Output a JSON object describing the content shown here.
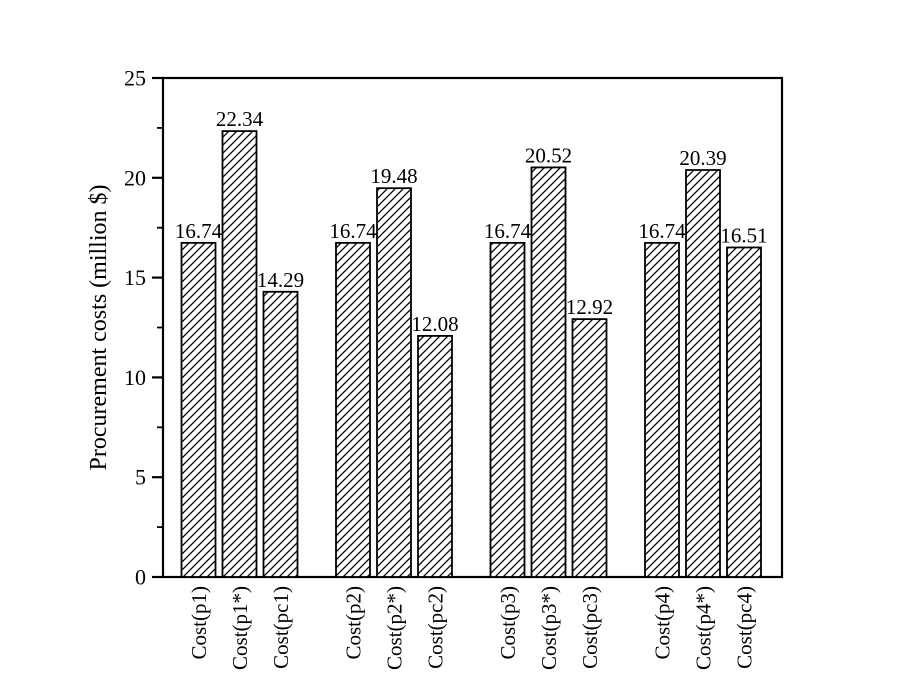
{
  "figure": {
    "title": ""
  },
  "chart_data": {
    "type": "bar",
    "title": "",
    "xlabel": "",
    "ylabel": "Procurement costs (million $)",
    "ylim": [
      0,
      25
    ],
    "yticks": [
      0,
      5,
      10,
      15,
      20,
      25
    ],
    "ytick_labels": [
      "0",
      "5",
      "10",
      "15",
      "20",
      "25"
    ],
    "minor_ytick_interval": 2.5,
    "grid": false,
    "legend": "none",
    "group_size": 3,
    "categories": [
      "Cost(p1)",
      "Cost(p1*)",
      "Cost(pc1)",
      "Cost(p2)",
      "Cost(p2*)",
      "Cost(pc2)",
      "Cost(p3)",
      "Cost(p3*)",
      "Cost(pc3)",
      "Cost(p4)",
      "Cost(p4*)",
      "Cost(pc4)"
    ],
    "values": [
      16.74,
      22.34,
      14.29,
      16.74,
      19.48,
      12.08,
      16.74,
      20.52,
      12.92,
      16.74,
      20.39,
      16.51
    ],
    "bar_labels": [
      "16.74",
      "22.34",
      "14.29",
      "16.74",
      "19.48",
      "12.08",
      "16.74",
      "20.52",
      "12.92",
      "16.74",
      "20.39",
      "16.51"
    ],
    "x_tick_label_rotation": 90,
    "bar_style": {
      "hatch": "forward-diagonal",
      "fill": "#ffffff",
      "stroke": "#000000"
    },
    "colors": {
      "ink": "#000000",
      "background": "#ffffff"
    }
  }
}
